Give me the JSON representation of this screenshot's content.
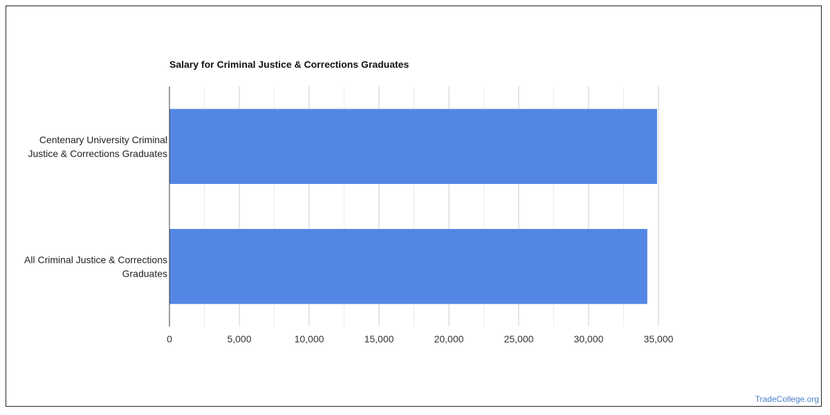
{
  "chart_data": {
    "type": "bar",
    "orientation": "horizontal",
    "title": "Salary for Criminal Justice & Corrections Graduates",
    "categories": [
      [
        "Centenary University Criminal",
        "Justice & Corrections Graduates"
      ],
      [
        "All Criminal Justice & Corrections",
        "Graduates"
      ]
    ],
    "values": [
      34900,
      34200
    ],
    "xlim": [
      0,
      35000
    ],
    "x_ticks": [
      0,
      5000,
      10000,
      15000,
      20000,
      25000,
      30000,
      35000
    ],
    "x_tick_labels": [
      "0",
      "5,000",
      "10,000",
      "15,000",
      "20,000",
      "25,000",
      "30,000",
      "35,000"
    ],
    "grid": true,
    "bar_color": "#5386E4"
  },
  "watermark": "TradeCollege.org"
}
